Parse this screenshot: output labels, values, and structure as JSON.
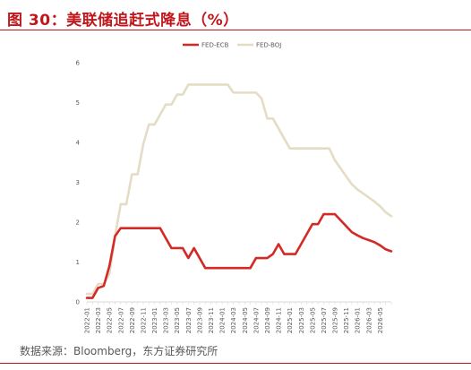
{
  "title": "图 30：美联储追赶式降息（%）",
  "source": "数据来源：Bloomberg，东方证券研究所",
  "colors": {
    "accent": "#c0171c",
    "fed_ecb": "#d42a26",
    "fed_boj": "#e4dcc4"
  },
  "chart_data": {
    "type": "line",
    "ylim": [
      0,
      6
    ],
    "yticks": [
      "0",
      "1",
      "2",
      "3",
      "4",
      "5",
      "6"
    ],
    "grid": false,
    "legend_position": "top",
    "categories": [
      "2022-01",
      "2022-02",
      "2022-03",
      "2022-04",
      "2022-05",
      "2022-06",
      "2022-07",
      "2022-08",
      "2022-09",
      "2022-10",
      "2022-11",
      "2022-12",
      "2023-01",
      "2023-02",
      "2023-03",
      "2023-04",
      "2023-05",
      "2023-06",
      "2023-07",
      "2023-08",
      "2023-09",
      "2023-10",
      "2023-11",
      "2023-12",
      "2024-01",
      "2024-02",
      "2024-03",
      "2024-04",
      "2024-05",
      "2024-06",
      "2024-07",
      "2024-08",
      "2024-09",
      "2024-10",
      "2024-11",
      "2024-12",
      "2025-01",
      "2025-02",
      "2025-03",
      "2025-04",
      "2025-05",
      "2025-06",
      "2025-07",
      "2025-08",
      "2025-09",
      "2025-10",
      "2025-11",
      "2025-12",
      "2026-01",
      "2026-02",
      "2026-03",
      "2026-04",
      "2026-05",
      "2026-06",
      "2026-07"
    ],
    "xtick_labels": [
      "2022-01",
      "2022-03",
      "2022-05",
      "2022-07",
      "2022-09",
      "2022-11",
      "2023-01",
      "2023-03",
      "2023-05",
      "2023-07",
      "2023-09",
      "2023-11",
      "2024-01",
      "2024-03",
      "2024-05",
      "2024-07",
      "2024-09",
      "2024-11",
      "2025-01",
      "2025-03",
      "2025-05",
      "2025-07",
      "2025-09",
      "2025-11",
      "2026-01",
      "2026-03",
      "2026-05"
    ],
    "series": [
      {
        "name": "FED-ECB",
        "color": "#d42a26",
        "values": [
          0.1,
          0.1,
          0.35,
          0.4,
          0.9,
          1.65,
          1.85,
          1.85,
          1.85,
          1.85,
          1.85,
          1.85,
          1.85,
          1.85,
          1.6,
          1.35,
          1.35,
          1.35,
          1.1,
          1.35,
          1.1,
          0.85,
          0.85,
          0.85,
          0.85,
          0.85,
          0.85,
          0.85,
          0.85,
          0.85,
          1.1,
          1.1,
          1.1,
          1.2,
          1.45,
          1.2,
          1.2,
          1.2,
          1.45,
          1.7,
          1.95,
          1.95,
          2.2,
          2.2,
          2.2,
          2.05,
          1.9,
          1.75,
          1.67,
          1.6,
          1.55,
          1.5,
          1.42,
          1.32,
          1.27
        ]
      },
      {
        "name": "FED-BOJ",
        "color": "#e4dcc4",
        "values": [
          0.2,
          0.2,
          0.45,
          0.45,
          0.7,
          1.65,
          2.45,
          2.45,
          3.2,
          3.2,
          3.95,
          4.45,
          4.45,
          4.7,
          4.95,
          4.95,
          5.2,
          5.2,
          5.45,
          5.45,
          5.45,
          5.45,
          5.45,
          5.45,
          5.45,
          5.45,
          5.25,
          5.25,
          5.25,
          5.25,
          5.25,
          5.1,
          4.6,
          4.6,
          4.35,
          4.1,
          3.85,
          3.85,
          3.85,
          3.85,
          3.85,
          3.85,
          3.85,
          3.85,
          3.55,
          3.35,
          3.15,
          2.95,
          2.82,
          2.72,
          2.62,
          2.52,
          2.4,
          2.25,
          2.15
        ]
      }
    ]
  }
}
